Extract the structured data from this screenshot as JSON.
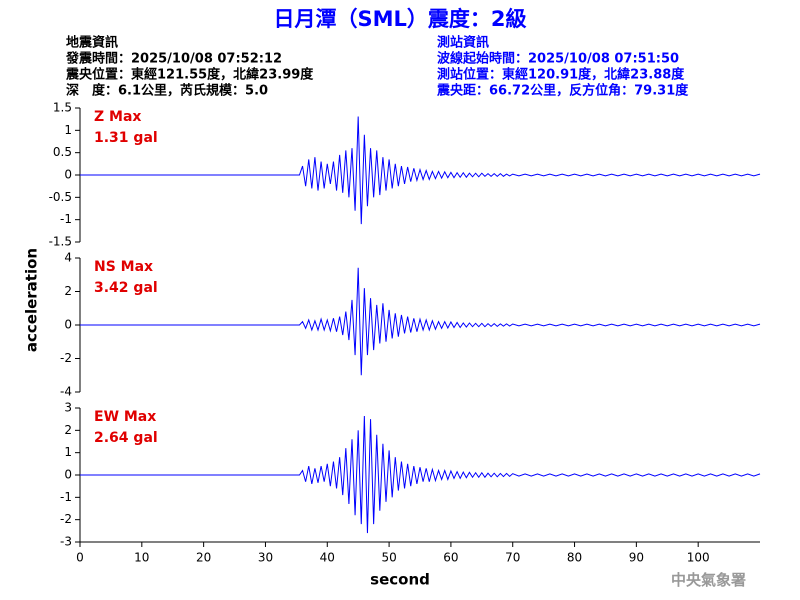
{
  "header": {
    "title": "日月潭（SML）震度：2級",
    "left": [
      "地震資訊",
      "發震時間：2025/10/08 07:52:12",
      "震央位置：東經121.55度，北緯23.99度",
      "深　度：6.1公里，芮氏規模：5.0"
    ],
    "right": [
      "測站資訊",
      "波線起始時間：2025/10/08 07:51:50",
      "測站位置：東經120.91度，北緯23.88度",
      "震央距：66.72公里，反方位角：79.31度"
    ]
  },
  "footer": "中央氣象署",
  "chart_data": [
    {
      "type": "line",
      "label": "Z Max",
      "max_label": "1.31 gal",
      "color": "#0000ff",
      "xlim": [
        0,
        110
      ],
      "ylim": [
        -1.5,
        1.5
      ],
      "yticks": [
        1.5,
        1,
        0.5,
        0,
        -0.5,
        -1,
        -1.5
      ],
      "x": [
        0,
        35.5,
        36,
        36.5,
        37,
        37.5,
        38,
        38.5,
        39,
        39.5,
        40,
        40.5,
        41,
        41.5,
        42,
        42.5,
        43,
        43.5,
        44,
        44.5,
        45,
        45.5,
        46,
        46.5,
        47,
        47.5,
        48,
        48.5,
        49,
        49.5,
        50,
        50.5,
        51,
        51.5,
        52,
        52.5,
        53,
        53.5,
        54,
        54.5,
        55,
        55.5,
        56,
        56.5,
        57,
        57.5,
        58,
        58.5,
        59,
        59.5,
        60,
        60.5,
        61,
        61.5,
        62,
        62.5,
        63,
        63.5,
        64,
        64.5,
        65,
        65.5,
        66,
        66.5,
        67,
        67.5,
        68,
        68.5,
        69,
        69.5,
        70,
        71,
        72,
        73,
        74,
        75,
        76,
        77,
        78,
        79,
        80,
        81,
        82,
        83,
        84,
        85,
        86,
        87,
        88,
        89,
        90,
        91,
        92,
        93,
        94,
        95,
        96,
        97,
        98,
        99,
        100,
        101,
        102,
        103,
        104,
        105,
        106,
        107,
        108,
        109,
        110
      ],
      "values": [
        0,
        0,
        0.2,
        -0.25,
        0.35,
        -0.3,
        0.4,
        -0.35,
        0.3,
        -0.3,
        0.25,
        -0.2,
        0.3,
        -0.35,
        0.45,
        -0.4,
        0.55,
        -0.5,
        0.6,
        -0.8,
        1.31,
        -1.1,
        0.9,
        -0.7,
        0.6,
        -0.5,
        0.55,
        -0.45,
        0.4,
        -0.35,
        0.35,
        -0.3,
        0.25,
        -0.25,
        0.2,
        -0.2,
        0.18,
        -0.15,
        0.15,
        -0.12,
        0.12,
        -0.1,
        0.1,
        -0.1,
        0.08,
        -0.08,
        0.08,
        -0.07,
        0.07,
        -0.06,
        0.06,
        -0.06,
        0.05,
        -0.05,
        0.05,
        -0.05,
        0.04,
        -0.04,
        0.04,
        -0.04,
        0.04,
        -0.03,
        0.03,
        -0.03,
        0.03,
        -0.03,
        0.03,
        -0.03,
        0.02,
        -0.02,
        0.02,
        -0.02,
        0.02,
        -0.02,
        0.02,
        -0.02,
        0.02,
        -0.02,
        0.02,
        -0.02,
        0.02,
        -0.02,
        0.02,
        -0.02,
        0.02,
        -0.02,
        0.02,
        -0.02,
        0.02,
        -0.02,
        0.02,
        -0.02,
        0.02,
        -0.02,
        0.02,
        -0.02,
        0.02,
        -0.02,
        0.02,
        -0.02,
        0.02,
        -0.02,
        0.02,
        -0.02,
        0.02,
        -0.02,
        0.02,
        -0.02,
        0.02,
        -0.02,
        0.02
      ]
    },
    {
      "type": "line",
      "label": "NS Max",
      "max_label": "3.42 gal",
      "color": "#0000ff",
      "xlim": [
        0,
        110
      ],
      "ylim": [
        -4,
        4
      ],
      "yticks": [
        4,
        2,
        0,
        -2,
        -4
      ],
      "ylabel": "acceleration",
      "x": [
        0,
        35.5,
        36,
        36.5,
        37,
        37.5,
        38,
        38.5,
        39,
        39.5,
        40,
        40.5,
        41,
        41.5,
        42,
        42.5,
        43,
        43.5,
        44,
        44.5,
        45,
        45.5,
        46,
        46.5,
        47,
        47.5,
        48,
        48.5,
        49,
        49.5,
        50,
        50.5,
        51,
        51.5,
        52,
        52.5,
        53,
        53.5,
        54,
        54.5,
        55,
        55.5,
        56,
        56.5,
        57,
        57.5,
        58,
        58.5,
        59,
        59.5,
        60,
        60.5,
        61,
        61.5,
        62,
        62.5,
        63,
        63.5,
        64,
        64.5,
        65,
        65.5,
        66,
        66.5,
        67,
        67.5,
        68,
        68.5,
        69,
        69.5,
        70,
        71,
        72,
        73,
        74,
        75,
        76,
        77,
        78,
        79,
        80,
        81,
        82,
        83,
        84,
        85,
        86,
        87,
        88,
        89,
        90,
        91,
        92,
        93,
        94,
        95,
        96,
        97,
        98,
        99,
        100,
        101,
        102,
        103,
        104,
        105,
        106,
        107,
        108,
        109,
        110
      ],
      "values": [
        0,
        0,
        0.2,
        -0.2,
        0.3,
        -0.3,
        0.25,
        -0.3,
        0.35,
        -0.3,
        0.3,
        -0.35,
        0.4,
        -0.4,
        0.5,
        -0.6,
        0.8,
        -0.9,
        1.5,
        -1.8,
        3.42,
        -3,
        2.2,
        -1.8,
        1.6,
        -1.5,
        1.2,
        -1.1,
        1.3,
        -1,
        0.9,
        -0.8,
        0.7,
        -0.7,
        0.6,
        -0.5,
        0.5,
        -0.45,
        0.4,
        -0.4,
        0.35,
        -0.3,
        0.3,
        -0.3,
        0.25,
        -0.25,
        0.2,
        -0.2,
        0.2,
        -0.18,
        0.18,
        -0.15,
        0.15,
        -0.15,
        0.12,
        -0.12,
        0.12,
        -0.1,
        0.1,
        -0.1,
        0.1,
        -0.1,
        0.08,
        -0.08,
        0.08,
        -0.08,
        0.07,
        -0.07,
        0.07,
        -0.06,
        0.06,
        -0.05,
        0.05,
        -0.05,
        0.05,
        -0.05,
        0.05,
        -0.05,
        0.05,
        -0.05,
        0.05,
        -0.05,
        0.05,
        -0.05,
        0.05,
        -0.05,
        0.05,
        -0.05,
        0.05,
        -0.05,
        0.05,
        -0.05,
        0.05,
        -0.05,
        0.05,
        -0.05,
        0.05,
        -0.05,
        0.05,
        -0.05,
        0.05,
        -0.05,
        0.05,
        -0.05,
        0.05,
        -0.05,
        0.05,
        -0.05,
        0.05,
        -0.05,
        0.05
      ]
    },
    {
      "type": "line",
      "label": "EW Max",
      "max_label": "2.64 gal",
      "color": "#0000ff",
      "xlim": [
        0,
        110
      ],
      "ylim": [
        -3,
        3
      ],
      "yticks": [
        3,
        2,
        1,
        0,
        -1,
        -2,
        -3
      ],
      "xticks": [
        0,
        10,
        20,
        30,
        40,
        50,
        60,
        70,
        80,
        90,
        100
      ],
      "xlabel": "second",
      "x": [
        0,
        35.5,
        36,
        36.5,
        37,
        37.5,
        38,
        38.5,
        39,
        39.5,
        40,
        40.5,
        41,
        41.5,
        42,
        42.5,
        43,
        43.5,
        44,
        44.5,
        45,
        45.5,
        46,
        46.5,
        47,
        47.5,
        48,
        48.5,
        49,
        49.5,
        50,
        50.5,
        51,
        51.5,
        52,
        52.5,
        53,
        53.5,
        54,
        54.5,
        55,
        55.5,
        56,
        56.5,
        57,
        57.5,
        58,
        58.5,
        59,
        59.5,
        60,
        60.5,
        61,
        61.5,
        62,
        62.5,
        63,
        63.5,
        64,
        64.5,
        65,
        65.5,
        66,
        66.5,
        67,
        67.5,
        68,
        68.5,
        69,
        69.5,
        70,
        71,
        72,
        73,
        74,
        75,
        76,
        77,
        78,
        79,
        80,
        81,
        82,
        83,
        84,
        85,
        86,
        87,
        88,
        89,
        90,
        91,
        92,
        93,
        94,
        95,
        96,
        97,
        98,
        99,
        100,
        101,
        102,
        103,
        104,
        105,
        106,
        107,
        108,
        109,
        110
      ],
      "values": [
        0,
        0,
        0.2,
        -0.3,
        0.4,
        -0.4,
        0.3,
        -0.35,
        0.4,
        -0.3,
        0.5,
        -0.5,
        0.6,
        -0.6,
        0.8,
        -0.9,
        1.2,
        -1.3,
        1.6,
        -1.8,
        2,
        -2.2,
        2.64,
        -2.6,
        2.5,
        -2.2,
        1.8,
        -1.6,
        1.4,
        -1.2,
        1.1,
        -1,
        0.8,
        -0.7,
        0.6,
        -0.6,
        0.5,
        -0.5,
        0.4,
        -0.4,
        0.35,
        -0.3,
        0.3,
        -0.3,
        0.25,
        -0.25,
        0.2,
        -0.2,
        0.2,
        -0.2,
        0.18,
        -0.15,
        0.15,
        -0.15,
        0.13,
        -0.12,
        0.12,
        -0.1,
        0.1,
        -0.1,
        0.1,
        -0.1,
        0.08,
        -0.08,
        0.08,
        -0.08,
        0.07,
        -0.07,
        0.07,
        -0.06,
        0.06,
        -0.05,
        0.05,
        -0.05,
        0.05,
        -0.05,
        0.05,
        -0.05,
        0.05,
        -0.05,
        0.05,
        -0.05,
        0.05,
        -0.05,
        0.05,
        -0.05,
        0.05,
        -0.05,
        0.05,
        -0.05,
        0.05,
        -0.05,
        0.05,
        -0.05,
        0.05,
        -0.05,
        0.05,
        -0.05,
        0.05,
        -0.05,
        0.05,
        -0.05,
        0.05,
        -0.05,
        0.05,
        -0.05,
        0.05,
        -0.05,
        0.05,
        -0.05,
        0.05
      ]
    }
  ]
}
